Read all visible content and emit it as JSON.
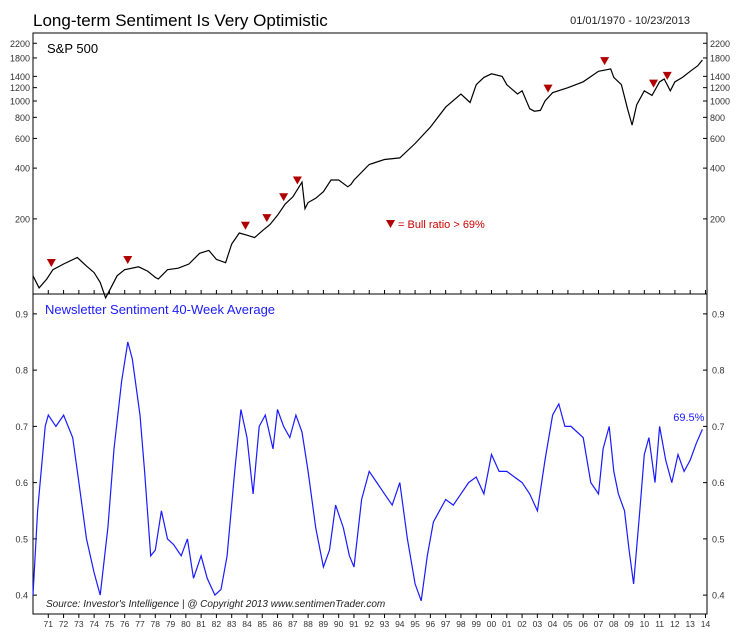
{
  "header": {
    "title": "Long-term Sentiment Is Very Optimistic",
    "date_range": "01/01/1970 - 10/23/2013"
  },
  "colors": {
    "price_line": "#000000",
    "sentiment_line": "#1a1aff",
    "marker": "#b00000",
    "legend_text": "#cc0000",
    "frame": "#000000",
    "axis_text": "#333333"
  },
  "chart_data": [
    {
      "type": "line",
      "title": "S&P 500",
      "scale": "log",
      "ylim": [
        80,
        2300
      ],
      "xlim": [
        1970.0,
        2014.1
      ],
      "y_ticks": [
        200,
        400,
        600,
        800,
        1000,
        1200,
        1400,
        1800,
        2200
      ],
      "series": [
        {
          "name": "S&P 500",
          "x": [
            1970.0,
            1970.4,
            1970.9,
            1971.3,
            1972.0,
            1972.9,
            1973.5,
            1974.0,
            1974.4,
            1974.75,
            1975.0,
            1975.5,
            1976.0,
            1976.9,
            1977.5,
            1978.0,
            1978.2,
            1978.8,
            1979.5,
            1980.2,
            1980.9,
            1981.5,
            1982.0,
            1982.6,
            1983.0,
            1983.5,
            1984.0,
            1984.5,
            1985.0,
            1985.5,
            1986.0,
            1986.5,
            1987.0,
            1987.6,
            1987.8,
            1988.0,
            1988.5,
            1989.0,
            1989.5,
            1990.0,
            1990.6,
            1990.8,
            1991.0,
            1992.0,
            1993.0,
            1994.0,
            1995.0,
            1996.0,
            1997.0,
            1998.0,
            1998.6,
            1999.0,
            1999.5,
            2000.0,
            2000.7,
            2001.0,
            2001.7,
            2002.0,
            2002.5,
            2002.8,
            2003.2,
            2003.5,
            2004.0,
            2005.0,
            2006.0,
            2007.0,
            2007.8,
            2008.0,
            2008.5,
            2008.9,
            2009.2,
            2009.5,
            2010.0,
            2010.5,
            2011.0,
            2011.3,
            2011.7,
            2012.0,
            2012.5,
            2013.0,
            2013.5,
            2013.8
          ],
          "values": [
            92,
            78,
            88,
            100,
            108,
            118,
            105,
            96,
            84,
            68,
            75,
            92,
            100,
            104,
            98,
            90,
            88,
            100,
            102,
            108,
            125,
            130,
            115,
            110,
            142,
            165,
            160,
            155,
            170,
            185,
            210,
            245,
            270,
            330,
            230,
            250,
            265,
            290,
            340,
            340,
            310,
            320,
            340,
            420,
            450,
            460,
            560,
            700,
            920,
            1100,
            980,
            1250,
            1380,
            1450,
            1400,
            1250,
            1100,
            1150,
            900,
            870,
            880,
            1000,
            1120,
            1200,
            1300,
            1500,
            1550,
            1380,
            1250,
            900,
            720,
            950,
            1150,
            1080,
            1300,
            1350,
            1150,
            1300,
            1380,
            1500,
            1620,
            1750
          ]
        }
      ],
      "markers": {
        "label": "= Bull ratio > 69%",
        "x": [
          1971.2,
          1976.2,
          1983.9,
          1985.3,
          1986.4,
          1987.3,
          2003.7,
          2007.4,
          2010.6,
          2011.5
        ]
      }
    },
    {
      "type": "line",
      "title": "Newsletter Sentiment 40-Week Average",
      "ylim": [
        0.37,
        0.93
      ],
      "xlim": [
        1970.0,
        2014.1
      ],
      "y_ticks": [
        0.4,
        0.5,
        0.6,
        0.7,
        0.8,
        0.9
      ],
      "last_value_label": "69.5%",
      "series": [
        {
          "name": "Newsletter Sentiment 40-Week Average",
          "x": [
            1970.0,
            1970.3,
            1970.8,
            1971.0,
            1971.5,
            1972.0,
            1972.6,
            1973.0,
            1973.5,
            1974.0,
            1974.4,
            1974.9,
            1975.3,
            1975.8,
            1976.2,
            1976.5,
            1977.0,
            1977.3,
            1977.7,
            1978.0,
            1978.4,
            1978.8,
            1979.2,
            1979.7,
            1980.1,
            1980.5,
            1981.0,
            1981.4,
            1981.9,
            1982.3,
            1982.7,
            1983.2,
            1983.6,
            1984.0,
            1984.4,
            1984.8,
            1985.2,
            1985.7,
            1986.0,
            1986.4,
            1986.8,
            1987.2,
            1987.6,
            1988.0,
            1988.5,
            1989.0,
            1989.4,
            1989.8,
            1990.3,
            1990.7,
            1991.0,
            1991.5,
            1992.0,
            1992.5,
            1993.0,
            1993.5,
            1994.0,
            1994.5,
            1995.0,
            1995.4,
            1995.8,
            1996.2,
            1996.6,
            1997.0,
            1997.5,
            1998.0,
            1998.5,
            1999.0,
            1999.5,
            2000.0,
            2000.5,
            2001.0,
            2001.5,
            2002.0,
            2002.5,
            2003.0,
            2003.5,
            2004.0,
            2004.4,
            2004.8,
            2005.2,
            2005.6,
            2006.0,
            2006.5,
            2007.0,
            2007.3,
            2007.7,
            2008.0,
            2008.3,
            2008.7,
            2009.0,
            2009.3,
            2009.7,
            2010.0,
            2010.3,
            2010.7,
            2011.0,
            2011.4,
            2011.8,
            2012.2,
            2012.6,
            2013.0,
            2013.4,
            2013.8
          ],
          "values": [
            0.4,
            0.55,
            0.7,
            0.72,
            0.7,
            0.72,
            0.68,
            0.6,
            0.5,
            0.44,
            0.4,
            0.52,
            0.66,
            0.78,
            0.85,
            0.82,
            0.72,
            0.62,
            0.47,
            0.48,
            0.55,
            0.5,
            0.49,
            0.47,
            0.5,
            0.43,
            0.47,
            0.43,
            0.4,
            0.41,
            0.47,
            0.62,
            0.73,
            0.68,
            0.58,
            0.7,
            0.72,
            0.66,
            0.73,
            0.7,
            0.68,
            0.72,
            0.69,
            0.62,
            0.52,
            0.45,
            0.48,
            0.56,
            0.52,
            0.47,
            0.45,
            0.57,
            0.62,
            0.6,
            0.58,
            0.56,
            0.6,
            0.5,
            0.42,
            0.39,
            0.47,
            0.53,
            0.55,
            0.57,
            0.56,
            0.58,
            0.6,
            0.61,
            0.58,
            0.65,
            0.62,
            0.62,
            0.61,
            0.6,
            0.58,
            0.55,
            0.64,
            0.72,
            0.74,
            0.7,
            0.7,
            0.69,
            0.68,
            0.6,
            0.58,
            0.66,
            0.7,
            0.62,
            0.58,
            0.55,
            0.48,
            0.42,
            0.55,
            0.65,
            0.68,
            0.6,
            0.7,
            0.64,
            0.6,
            0.65,
            0.62,
            0.64,
            0.67,
            0.695
          ]
        }
      ]
    }
  ],
  "x_axis": {
    "tick_labels": [
      "71",
      "72",
      "73",
      "74",
      "75",
      "76",
      "77",
      "78",
      "79",
      "80",
      "81",
      "82",
      "83",
      "84",
      "85",
      "86",
      "87",
      "88",
      "89",
      "90",
      "91",
      "92",
      "93",
      "94",
      "95",
      "96",
      "97",
      "98",
      "99",
      "00",
      "01",
      "02",
      "03",
      "04",
      "05",
      "06",
      "07",
      "08",
      "09",
      "10",
      "11",
      "12",
      "13",
      "14"
    ]
  },
  "footer": {
    "source": "Source:  Investor's Intelligence   |   @ Copyright 2013   www.sentimenTrader.com"
  }
}
